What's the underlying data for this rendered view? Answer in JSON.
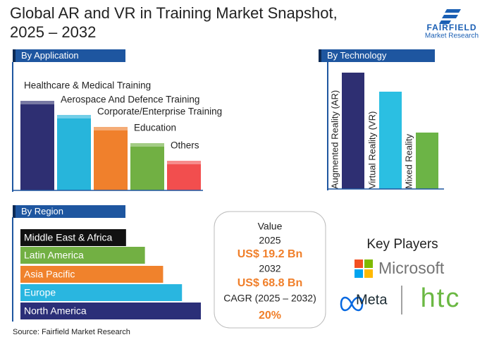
{
  "header": {
    "title_lines": [
      "Global AR and VR in Training Market Snapshot,",
      "2025 – 2032"
    ],
    "logo": {
      "name": "FAIRFIELD",
      "tagline": "Market Research"
    }
  },
  "chart_data": [
    {
      "type": "bar",
      "title": "By Application",
      "categories": [
        "Healthcare & Medical Training",
        "Aerospace And Defence Training",
        "Corporate/Enterprise Training",
        "Education",
        "Others"
      ],
      "values": [
        127,
        107,
        90,
        67,
        42
      ],
      "colors": [
        "#2e2f72",
        "#27b5db",
        "#f0802c",
        "#71b043",
        "#f24e4e"
      ],
      "ylim": [
        0,
        130
      ]
    },
    {
      "type": "bar",
      "title": "By Technology",
      "categories": [
        "Augmented Reality (AR)",
        "Virtual Reality (VR)",
        "Mixed Reality"
      ],
      "values": [
        165,
        138,
        80
      ],
      "colors": [
        "#2e2f72",
        "#2bbfe2",
        "#6cb446"
      ],
      "ylim": [
        0,
        170
      ]
    },
    {
      "type": "barh",
      "title": "By Region",
      "categories": [
        "Middle East & Africa",
        "Latin America",
        "Asia Pacific",
        "Europe",
        "North America"
      ],
      "values": [
        151,
        178,
        204,
        231,
        258
      ],
      "colors": [
        "#111111",
        "#72b043",
        "#f0822c",
        "#29b6e0",
        "#2b2f78"
      ],
      "xlim": [
        0,
        260
      ]
    }
  ],
  "value_box": {
    "label": "Value",
    "year_start": "2025",
    "value_start": "US$ 19.2  Bn",
    "year_end": "2032",
    "value_end": "US$ 68.8 Bn",
    "cagr_label": "CAGR (2025 – 2032)",
    "cagr_value": "20%"
  },
  "key_players": {
    "title": "Key Players",
    "logos": [
      "Microsoft",
      "Meta",
      "htc"
    ]
  },
  "source": "Source: Fairfield Market Research"
}
